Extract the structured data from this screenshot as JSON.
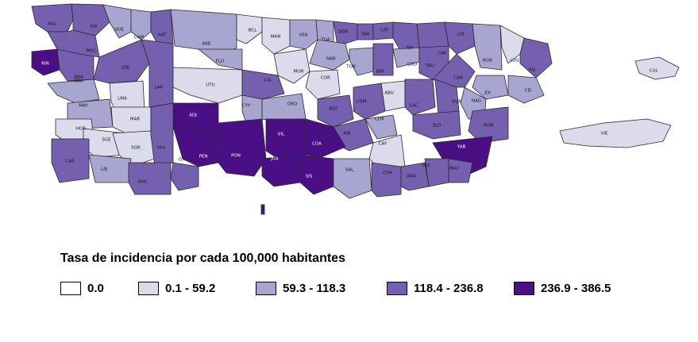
{
  "legend": {
    "title": "Tasa de incidencia por cada 100,000 habitantes",
    "classes": [
      {
        "label": "0.0",
        "color": "#ffffff"
      },
      {
        "label": "0.1 - 59.2",
        "color": "#dcdbeb"
      },
      {
        "label": "59.3 - 118.3",
        "color": "#a8a6d1"
      },
      {
        "label": "118.4 - 236.8",
        "color": "#7560b0"
      },
      {
        "label": "236.9 - 386.5",
        "color": "#4a0f85"
      }
    ]
  },
  "municipalities": [
    {
      "code": "AGL",
      "class": 3
    },
    {
      "code": "ISA",
      "class": 3
    },
    {
      "code": "QUE",
      "class": 2
    },
    {
      "code": "CAM",
      "class": 2
    },
    {
      "code": "HAT",
      "class": 3
    },
    {
      "code": "ARE",
      "class": 2
    },
    {
      "code": "BCL",
      "class": 1
    },
    {
      "code": "MAN",
      "class": 1
    },
    {
      "code": "VEA",
      "class": 2
    },
    {
      "code": "TOA",
      "class": 2
    },
    {
      "code": "DOR",
      "class": 3
    },
    {
      "code": "TBA",
      "class": 3
    },
    {
      "code": "CAT",
      "class": 3
    },
    {
      "code": "SJU",
      "class": 3
    },
    {
      "code": "CAR",
      "class": 3
    },
    {
      "code": "LOI",
      "class": 3
    },
    {
      "code": "RGR",
      "class": 2
    },
    {
      "code": "LUQ",
      "class": 1
    },
    {
      "code": "FAJ",
      "class": 3
    },
    {
      "code": "RIN",
      "class": 4
    },
    {
      "code": "ANA",
      "class": 3
    },
    {
      "code": "MOC",
      "class": 3
    },
    {
      "code": "SSE",
      "class": 3
    },
    {
      "code": "LAR",
      "class": 3
    },
    {
      "code": "UTU",
      "class": 1
    },
    {
      "code": "FLO",
      "class": 2
    },
    {
      "code": "MOR",
      "class": 1
    },
    {
      "code": "CIA",
      "class": 3
    },
    {
      "code": "COR",
      "class": 1
    },
    {
      "code": "NAR",
      "class": 2
    },
    {
      "code": "TOB",
      "class": 2
    },
    {
      "code": "BAY",
      "class": 3
    },
    {
      "code": "GBO",
      "class": 2
    },
    {
      "code": "TRU",
      "class": 3
    },
    {
      "code": "CAN",
      "class": 3
    },
    {
      "code": "JDI",
      "class": 2
    },
    {
      "code": "CEI",
      "class": 2
    },
    {
      "code": "AÑA",
      "class": 2
    },
    {
      "code": "MAY",
      "class": 2
    },
    {
      "code": "LMA",
      "class": 1
    },
    {
      "code": "MAR",
      "class": 1
    },
    {
      "code": "ADJ",
      "class": 4
    },
    {
      "code": "CYY",
      "class": 2
    },
    {
      "code": "ORO",
      "class": 2
    },
    {
      "code": "BQT",
      "class": 3
    },
    {
      "code": "COM",
      "class": 3
    },
    {
      "code": "ABU",
      "class": 1
    },
    {
      "code": "CAC",
      "class": 3
    },
    {
      "code": "GUR",
      "class": 3
    },
    {
      "code": "SLO",
      "class": 3
    },
    {
      "code": "NAG",
      "class": 2
    },
    {
      "code": "HUM",
      "class": 3
    },
    {
      "code": "AIB",
      "class": 3
    },
    {
      "code": "CDR",
      "class": 2
    },
    {
      "code": "HOR",
      "class": 1
    },
    {
      "code": "SGE",
      "class": 1
    },
    {
      "code": "SGR",
      "class": 1
    },
    {
      "code": "YAU",
      "class": 3
    },
    {
      "code": "PEN",
      "class": 4
    },
    {
      "code": "PON",
      "class": 4
    },
    {
      "code": "VIL",
      "class": 4
    },
    {
      "code": "COA",
      "class": 4
    },
    {
      "code": "CAY",
      "class": 1
    },
    {
      "code": "YAB",
      "class": 4
    },
    {
      "code": "GYL",
      "class": 3
    },
    {
      "code": "JUA",
      "class": 4
    },
    {
      "code": "SIS",
      "class": 4
    },
    {
      "code": "SAL",
      "class": 2
    },
    {
      "code": "GYM",
      "class": 3
    },
    {
      "code": "ARA",
      "class": 3
    },
    {
      "code": "PAT",
      "class": 3
    },
    {
      "code": "MAU",
      "class": 3
    },
    {
      "code": "CAB",
      "class": 3
    },
    {
      "code": "LAJ",
      "class": 2
    },
    {
      "code": "GNC",
      "class": 3
    },
    {
      "code": "VIE",
      "class": 1
    },
    {
      "code": "CUL",
      "class": 1
    }
  ]
}
